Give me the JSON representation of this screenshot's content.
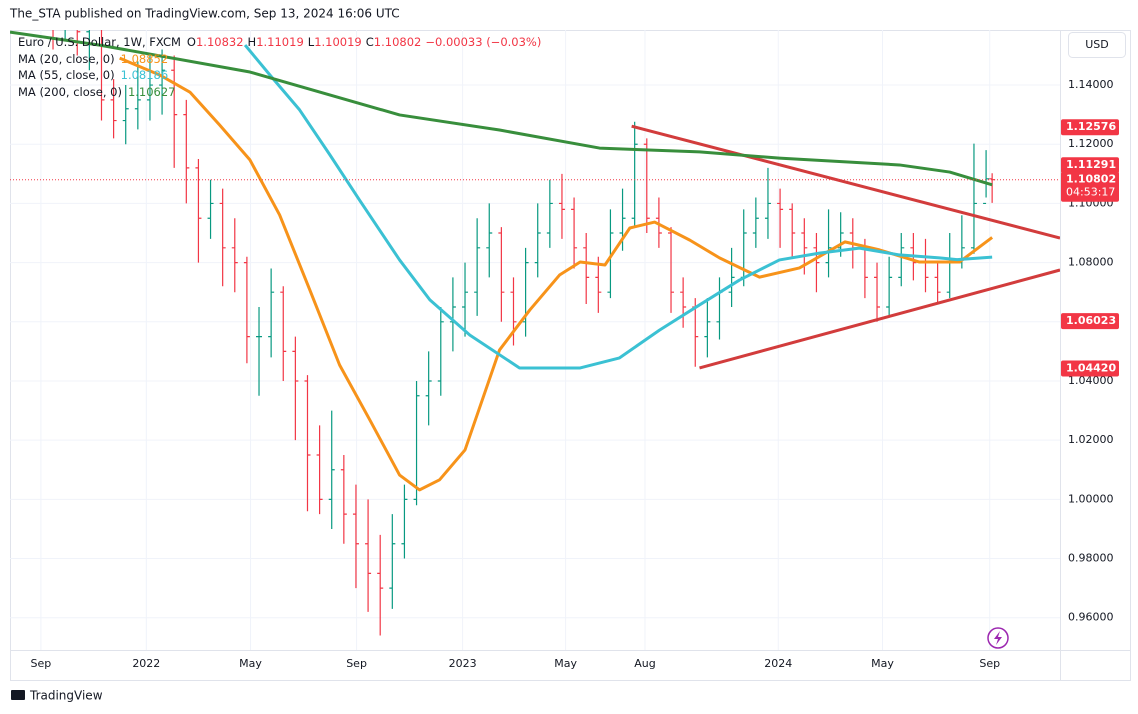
{
  "header": "The_STA published on TradingView.com, Sep 13, 2024 16:06 UTC",
  "footer_brand": "TradingView",
  "chart_data": {
    "type": "ohlc",
    "symbol": "Euro / U.S. Dollar, 1W, FXCM",
    "ohlc_letters": [
      "O",
      "H",
      "L",
      "C"
    ],
    "change": "−0.00033 (−0.03%)",
    "currency": "USD",
    "up_color": "#089981",
    "down_color": "#f23645",
    "grid": true,
    "xlim": [
      -5.1,
      168.2
    ],
    "ylim": [
      0.9491,
      1.1586
    ],
    "yticks": [
      {
        "value": 0.96,
        "label": "0.96000"
      },
      {
        "value": 0.98,
        "label": "0.98000"
      },
      {
        "value": 1.0,
        "label": "1.00000"
      },
      {
        "value": 1.02,
        "label": "1.02000"
      },
      {
        "value": 1.04,
        "label": "1.04000"
      },
      {
        "value": 1.06,
        "label": "1.06000"
      },
      {
        "value": 1.08,
        "label": "1.08000"
      },
      {
        "value": 1.1,
        "label": "1.10000"
      },
      {
        "value": 1.12,
        "label": "1.12000"
      },
      {
        "value": 1.14,
        "label": "1.14000"
      }
    ],
    "xticks": [
      {
        "value": 0,
        "label": "Sep"
      },
      {
        "value": 17.4,
        "label": "2022"
      },
      {
        "value": 34.6,
        "label": "May"
      },
      {
        "value": 52.1,
        "label": "Sep"
      },
      {
        "value": 69.6,
        "label": "2023"
      },
      {
        "value": 86.6,
        "label": "May"
      },
      {
        "value": 99.7,
        "label": "Aug"
      },
      {
        "value": 121.7,
        "label": "2024"
      },
      {
        "value": 138.9,
        "label": "May"
      },
      {
        "value": 156.6,
        "label": "Sep"
      }
    ],
    "x": [
      2,
      4,
      6,
      8,
      10,
      12,
      14,
      16,
      18,
      20,
      22,
      24,
      26,
      28,
      30,
      32,
      34,
      36,
      38,
      40,
      42,
      44,
      46,
      48,
      50,
      52,
      54,
      56,
      58,
      60,
      62,
      64,
      66,
      68,
      70,
      72,
      74,
      76,
      78,
      80,
      82,
      84,
      86,
      88,
      90,
      92,
      94,
      96,
      98,
      100,
      102,
      104,
      106,
      108,
      110,
      112,
      114,
      116,
      118,
      120,
      122,
      124,
      126,
      128,
      130,
      132,
      134,
      136,
      138,
      140,
      142,
      144,
      146,
      148,
      150,
      152,
      154,
      156,
      157
    ],
    "bars": [
      [
        1.17,
        1.172,
        1.152,
        1.16
      ],
      [
        1.16,
        1.17,
        1.155,
        1.165
      ],
      [
        1.165,
        1.168,
        1.15,
        1.158
      ],
      [
        1.158,
        1.166,
        1.145,
        1.16
      ],
      [
        1.16,
        1.162,
        1.128,
        1.135
      ],
      [
        1.135,
        1.142,
        1.122,
        1.128
      ],
      [
        1.128,
        1.14,
        1.12,
        1.132
      ],
      [
        1.132,
        1.148,
        1.125,
        1.135
      ],
      [
        1.135,
        1.15,
        1.128,
        1.14
      ],
      [
        1.14,
        1.152,
        1.13,
        1.145
      ],
      [
        1.145,
        1.15,
        1.112,
        1.13
      ],
      [
        1.13,
        1.135,
        1.1,
        1.112
      ],
      [
        1.112,
        1.115,
        1.08,
        1.095
      ],
      [
        1.095,
        1.108,
        1.088,
        1.1
      ],
      [
        1.1,
        1.105,
        1.072,
        1.085
      ],
      [
        1.085,
        1.095,
        1.07,
        1.08
      ],
      [
        1.08,
        1.082,
        1.046,
        1.055
      ],
      [
        1.055,
        1.065,
        1.035,
        1.055
      ],
      [
        1.055,
        1.078,
        1.048,
        1.07
      ],
      [
        1.07,
        1.072,
        1.04,
        1.05
      ],
      [
        1.05,
        1.055,
        1.02,
        1.04
      ],
      [
        1.04,
        1.042,
        0.996,
        1.015
      ],
      [
        1.015,
        1.025,
        0.995,
        1.0
      ],
      [
        1.0,
        1.03,
        0.99,
        1.01
      ],
      [
        1.01,
        1.015,
        0.985,
        0.995
      ],
      [
        0.995,
        1.005,
        0.97,
        0.985
      ],
      [
        0.985,
        1.0,
        0.962,
        0.975
      ],
      [
        0.975,
        0.988,
        0.954,
        0.97
      ],
      [
        0.97,
        0.995,
        0.963,
        0.985
      ],
      [
        0.985,
        1.005,
        0.98,
        1.0
      ],
      [
        1.0,
        1.04,
        0.998,
        1.035
      ],
      [
        1.035,
        1.05,
        1.025,
        1.04
      ],
      [
        1.04,
        1.065,
        1.035,
        1.06
      ],
      [
        1.06,
        1.075,
        1.05,
        1.065
      ],
      [
        1.065,
        1.08,
        1.055,
        1.07
      ],
      [
        1.07,
        1.095,
        1.062,
        1.085
      ],
      [
        1.085,
        1.1,
        1.075,
        1.09
      ],
      [
        1.09,
        1.092,
        1.06,
        1.07
      ],
      [
        1.07,
        1.075,
        1.052,
        1.06
      ],
      [
        1.06,
        1.085,
        1.055,
        1.08
      ],
      [
        1.08,
        1.1,
        1.075,
        1.09
      ],
      [
        1.09,
        1.108,
        1.085,
        1.1
      ],
      [
        1.1,
        1.11,
        1.088,
        1.098
      ],
      [
        1.098,
        1.102,
        1.078,
        1.085
      ],
      [
        1.085,
        1.09,
        1.066,
        1.075
      ],
      [
        1.075,
        1.082,
        1.063,
        1.07
      ],
      [
        1.07,
        1.098,
        1.068,
        1.09
      ],
      [
        1.09,
        1.105,
        1.084,
        1.095
      ],
      [
        1.095,
        1.1276,
        1.092,
        1.12
      ],
      [
        1.12,
        1.122,
        1.09,
        1.095
      ],
      [
        1.095,
        1.102,
        1.085,
        1.09
      ],
      [
        1.09,
        1.092,
        1.063,
        1.07
      ],
      [
        1.07,
        1.075,
        1.058,
        1.065
      ],
      [
        1.065,
        1.068,
        1.0448,
        1.055
      ],
      [
        1.055,
        1.068,
        1.048,
        1.06
      ],
      [
        1.06,
        1.075,
        1.054,
        1.07
      ],
      [
        1.07,
        1.085,
        1.065,
        1.075
      ],
      [
        1.075,
        1.098,
        1.072,
        1.09
      ],
      [
        1.09,
        1.102,
        1.085,
        1.095
      ],
      [
        1.095,
        1.112,
        1.088,
        1.1
      ],
      [
        1.1,
        1.105,
        1.085,
        1.098
      ],
      [
        1.098,
        1.1,
        1.082,
        1.09
      ],
      [
        1.09,
        1.095,
        1.076,
        1.085
      ],
      [
        1.085,
        1.09,
        1.07,
        1.08
      ],
      [
        1.08,
        1.098,
        1.075,
        1.085
      ],
      [
        1.085,
        1.097,
        1.082,
        1.09
      ],
      [
        1.09,
        1.095,
        1.078,
        1.085
      ],
      [
        1.085,
        1.088,
        1.068,
        1.075
      ],
      [
        1.075,
        1.08,
        1.06,
        1.065
      ],
      [
        1.065,
        1.082,
        1.062,
        1.075
      ],
      [
        1.075,
        1.09,
        1.072,
        1.085
      ],
      [
        1.085,
        1.09,
        1.074,
        1.08
      ],
      [
        1.08,
        1.088,
        1.07,
        1.075
      ],
      [
        1.075,
        1.08,
        1.066,
        1.07
      ],
      [
        1.07,
        1.09,
        1.068,
        1.08
      ],
      [
        1.08,
        1.096,
        1.078,
        1.085
      ],
      [
        1.085,
        1.1202,
        1.083,
        1.1
      ],
      [
        1.1,
        1.118,
        1.102,
        1.10832
      ],
      [
        1.10832,
        1.11019,
        1.10019,
        1.10802
      ]
    ],
    "countdown": "04:53:17",
    "series": [
      {
        "name": "MA (20, close, 0)",
        "color": "#f7931a",
        "x": [
          13,
          19.6,
          24.6,
          29.5,
          34.5,
          39.4,
          44.4,
          49.3,
          54.3,
          59.2,
          62.5,
          65.8,
          70,
          75.7,
          80.7,
          85.6,
          89,
          93.1,
          97.2,
          101.3,
          107.1,
          112,
          118.6,
          125.2,
          132.7,
          138.4,
          145,
          151.6,
          157
        ],
        "values": [
          1.1491,
          1.1434,
          1.1376,
          1.1265,
          1.1147,
          1.0961,
          1.0707,
          1.0454,
          1.0268,
          1.0082,
          1.0032,
          1.0066,
          1.0167,
          1.0505,
          1.064,
          1.0758,
          1.0802,
          1.0792,
          1.0917,
          1.0937,
          1.0876,
          1.0816,
          1.0751,
          1.0782,
          1.087,
          1.0843,
          1.0802,
          1.0802,
          1.08852
        ]
      },
      {
        "name": "MA (55, close, 0)",
        "color": "#3bc1d3",
        "x": [
          33.7,
          37.8,
          42.7,
          47.7,
          52.6,
          59.2,
          64.2,
          70.8,
          79,
          89,
          95.5,
          102.1,
          108.7,
          115.3,
          121.9,
          128.5,
          135.1,
          141.7,
          148.3,
          151.2,
          157
        ],
        "values": [
          1.1535,
          1.1434,
          1.1316,
          1.1164,
          1.1011,
          1.0809,
          1.0674,
          1.0555,
          1.0444,
          1.0444,
          1.0478,
          1.0572,
          1.0657,
          1.0741,
          1.0809,
          1.0832,
          1.0849,
          1.0826,
          1.0816,
          1.081,
          1.08186
        ]
      },
      {
        "name": "MA (200, close, 0)",
        "color": "#388e3c",
        "x": [
          -5.1,
          9.7,
          34.5,
          59.2,
          75.7,
          92.2,
          108.7,
          121.9,
          141.7,
          150,
          157
        ],
        "values": [
          1.1579,
          1.1535,
          1.1444,
          1.1299,
          1.1248,
          1.1187,
          1.1174,
          1.1153,
          1.113,
          1.1106,
          1.10627
        ]
      }
    ],
    "trendlines": [
      {
        "color": "#d23c3c",
        "x": [
          97.5,
          168.2
        ],
        "values": [
          1.1261,
          1.0883
        ]
      },
      {
        "color": "#d23c3c",
        "x": [
          108.7,
          168.2
        ],
        "values": [
          1.0444,
          1.0775
        ]
      }
    ],
    "price_labels": [
      {
        "value": 1.12576,
        "label": "1.12576",
        "color": "#f23645"
      },
      {
        "value": 1.11291,
        "label": "1.11291",
        "color": "#f23645"
      },
      {
        "value": 1.06023,
        "label": "1.06023",
        "color": "#f23645"
      },
      {
        "value": 1.0442,
        "label": "1.04420",
        "color": "#f23645"
      }
    ]
  }
}
